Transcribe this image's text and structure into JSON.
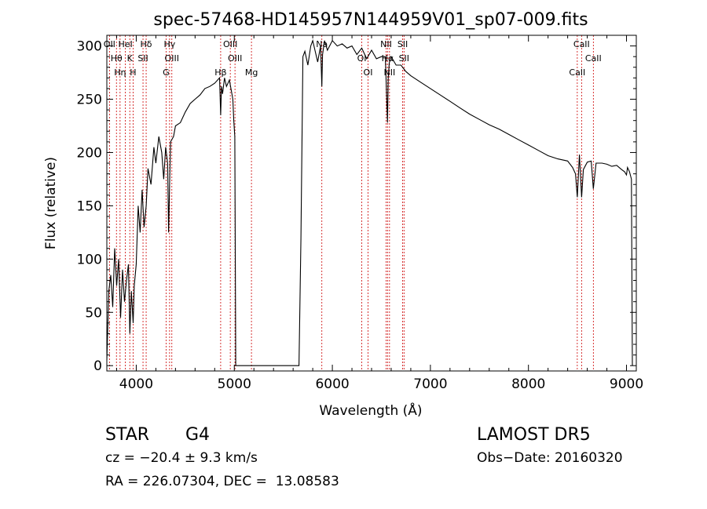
{
  "chart_data": {
    "type": "line",
    "title": "spec-57468-HD145957N144959V01_sp07-009.fits",
    "xlabel": "Wavelength (Å)",
    "ylabel": "Flux (relative)",
    "xlim": [
      3700,
      9100
    ],
    "ylim": [
      -5,
      310
    ],
    "x_ticks": [
      4000,
      5000,
      6000,
      7000,
      8000,
      9000
    ],
    "y_ticks": [
      0,
      50,
      100,
      150,
      200,
      250,
      300
    ],
    "x_tick_labels": [
      "4000",
      "5000",
      "6000",
      "7000",
      "8000",
      "9000"
    ],
    "y_tick_labels": [
      "0",
      "50",
      "100",
      "150",
      "200",
      "250",
      "300"
    ],
    "grid": false,
    "series": [
      {
        "color": "#000000",
        "x": [
          3700,
          3720,
          3740,
          3760,
          3780,
          3800,
          3820,
          3840,
          3860,
          3880,
          3900,
          3920,
          3935,
          3950,
          3968,
          3980,
          4000,
          4020,
          4040,
          4060,
          4080,
          4101,
          4120,
          4150,
          4180,
          4200,
          4230,
          4260,
          4280,
          4300,
          4320,
          4330,
          4340,
          4350,
          4380,
          4400,
          4450,
          4500,
          4550,
          4600,
          4650,
          4700,
          4750,
          4800,
          4850,
          4861,
          4870,
          4880,
          4900,
          4920,
          4950,
          4970,
          4985,
          4995,
          5005,
          5015,
          5040,
          5060,
          5100,
          5200,
          5300,
          5400,
          5500,
          5600,
          5650,
          5660,
          5680,
          5700,
          5720,
          5750,
          5780,
          5800,
          5850,
          5880,
          5893,
          5900,
          5920,
          5950,
          6000,
          6050,
          6100,
          6150,
          6200,
          6250,
          6300,
          6350,
          6400,
          6450,
          6500,
          6540,
          6555,
          6563,
          6570,
          6580,
          6600,
          6650,
          6700,
          6750,
          6800,
          6900,
          7000,
          7100,
          7200,
          7300,
          7400,
          7500,
          7600,
          7700,
          7800,
          7900,
          8000,
          8100,
          8200,
          8300,
          8400,
          8450,
          8480,
          8498,
          8520,
          8542,
          8560,
          8600,
          8640,
          8662,
          8690,
          8750,
          8800,
          8850,
          8900,
          8950,
          8980,
          9000,
          9010,
          9030,
          9050,
          9060
        ],
        "y": [
          5,
          70,
          85,
          55,
          110,
          75,
          100,
          45,
          90,
          60,
          80,
          95,
          30,
          70,
          40,
          75,
          95,
          150,
          125,
          165,
          130,
          150,
          185,
          170,
          205,
          190,
          215,
          200,
          175,
          205,
          190,
          125,
          170,
          210,
          215,
          225,
          228,
          238,
          246,
          250,
          254,
          260,
          262,
          265,
          270,
          235,
          262,
          255,
          270,
          262,
          268,
          258,
          250,
          230,
          215,
          0,
          0,
          0,
          0,
          0,
          0,
          0,
          0,
          0,
          0,
          0,
          120,
          290,
          295,
          282,
          300,
          305,
          285,
          300,
          262,
          292,
          305,
          296,
          305,
          300,
          302,
          298,
          300,
          292,
          298,
          288,
          296,
          288,
          290,
          290,
          250,
          228,
          270,
          284,
          290,
          282,
          282,
          276,
          272,
          266,
          260,
          254,
          248,
          242,
          236,
          231,
          226,
          222,
          217,
          212,
          207,
          202,
          197,
          194,
          192,
          186,
          180,
          158,
          198,
          158,
          184,
          191,
          192,
          166,
          190,
          190,
          189,
          187,
          188,
          184,
          182,
          179,
          186,
          182,
          175,
          0
        ]
      }
    ],
    "line_markers": [
      {
        "label": "OII",
        "wavelength": 3727
      },
      {
        "label": "Hθ",
        "wavelength": 3798
      },
      {
        "label": "Hη",
        "wavelength": 3835
      },
      {
        "label": "HeI",
        "wavelength": 3889
      },
      {
        "label": "K",
        "wavelength": 3934
      },
      {
        "label": "H",
        "wavelength": 3968
      },
      {
        "label": "Hδ",
        "wavelength": 4101
      },
      {
        "label": "SII",
        "wavelength": 4069
      },
      {
        "label": "G",
        "wavelength": 4304
      },
      {
        "label": "Hγ",
        "wavelength": 4340
      },
      {
        "label": "OIII",
        "wavelength": 4363
      },
      {
        "label": "Hβ",
        "wavelength": 4861
      },
      {
        "label": "OIII",
        "wavelength": 4959
      },
      {
        "label": "OIII",
        "wavelength": 5007
      },
      {
        "label": "Mg",
        "wavelength": 5175
      },
      {
        "label": "Na",
        "wavelength": 5893
      },
      {
        "label": "OI",
        "wavelength": 6300
      },
      {
        "label": "OI",
        "wavelength": 6364
      },
      {
        "label": "NII",
        "wavelength": 6548
      },
      {
        "label": "Hα",
        "wavelength": 6563
      },
      {
        "label": "NII",
        "wavelength": 6583
      },
      {
        "label": "SII",
        "wavelength": 6717
      },
      {
        "label": "SII",
        "wavelength": 6731
      },
      {
        "label": "CaII",
        "wavelength": 8498
      },
      {
        "label": "CaII",
        "wavelength": 8542
      },
      {
        "label": "CaII",
        "wavelength": 8662
      }
    ],
    "marker_color": "#cc0000"
  },
  "info": {
    "object_class": "STAR",
    "subclass": "G4",
    "survey": "LAMOST DR5",
    "redshift_line": "cz = −20.4 ± 9.3 km/s",
    "obs_date": "Obs−Date: 20160320",
    "coords": "RA = 226.07304, DEC =  13.08583"
  }
}
